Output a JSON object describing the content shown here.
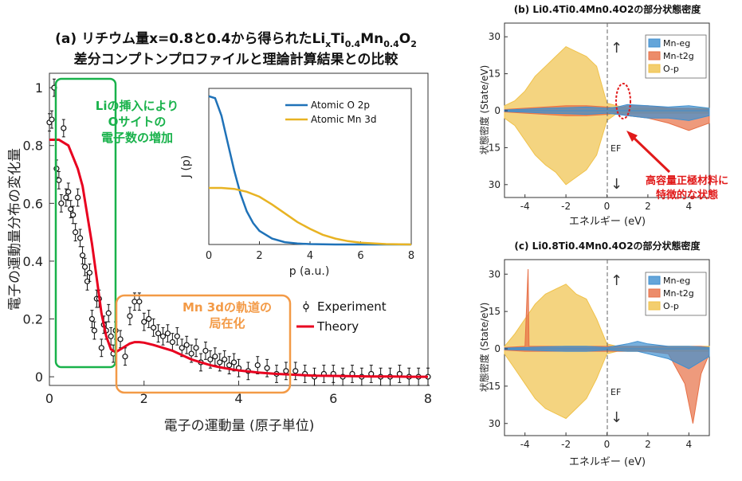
{
  "colors": {
    "experiment": "#111111",
    "theory": "#e8001f",
    "atomic_o": "#1f72b8",
    "atomic_mn": "#e8b323",
    "green_box": "#19b24b",
    "orange_box": "#f39a46",
    "dos_mn_eg": "#3f8fcf",
    "dos_mn_t2g": "#e76f45",
    "dos_o_p": "#f0c24a",
    "red_annotation": "#e11a1a"
  },
  "panel_a": {
    "title_line1": "(a) リチウム量x=0.8と0.4から得られたLi",
    "title_sub_x": "x",
    "title_mid1": "Ti",
    "title_sub_04a": "0.4",
    "title_mid2": "Mn",
    "title_sub_04b": "0.4",
    "title_mid3": "O",
    "title_sub_2": "2",
    "title_line2": "差分コンプトンプロファイルと理論計算結果との比較",
    "ylabel": "電子の運動量分布の変化量",
    "xlabel": "電子の運動量 (原子単位)",
    "annotation_green_1": "Liの挿入により",
    "annotation_green_2": "Oサイトの",
    "annotation_green_3": "電子数の増加",
    "annotation_orange_1": "Mn 3dの軌道の",
    "annotation_orange_2": "局在化",
    "legend_experiment": "Experiment",
    "legend_theory": "Theory",
    "inset_ylabel": "J (p)",
    "inset_xlabel": "p (a.u.)",
    "inset_legend_o": "Atomic O 2p",
    "inset_legend_mn": "Atomic Mn 3d"
  },
  "panel_b": {
    "title": "(b) Li0.4Ti0.4Mn0.4O2の部分状態密度",
    "ylabel": "状態密度 (State/eV)",
    "xlabel": "エネルギー (eV)",
    "ef_label": "EF",
    "legend": [
      "Mn-eg",
      "Mn-t2g",
      "O-p"
    ],
    "callout_1": "高容量正極材料に",
    "callout_2": "特徴的な状態"
  },
  "panel_c": {
    "title": "(c) Li0.8Ti0.4Mn0.4O2の部分状態密度",
    "ylabel": "状態密度 (State/eV)",
    "xlabel": "エネルギー (eV)",
    "ef_label": "EF",
    "legend": [
      "Mn-eg",
      "Mn-t2g",
      "O-p"
    ]
  },
  "chart_data": [
    {
      "type": "scatter",
      "xlabel": "電子の運動量 (原子単位)",
      "ylabel": "電子の運動量分布の変化量",
      "xlim": [
        0,
        8
      ],
      "ylim": [
        -0.03,
        1.05
      ],
      "xticks": [
        0,
        2,
        4,
        6,
        8
      ],
      "yticks": [
        0,
        0.2,
        0.4,
        0.6,
        0.8,
        1
      ],
      "series": [
        {
          "name": "Experiment",
          "x": [
            0.0,
            0.05,
            0.1,
            0.15,
            0.2,
            0.25,
            0.3,
            0.35,
            0.4,
            0.45,
            0.5,
            0.55,
            0.6,
            0.65,
            0.7,
            0.75,
            0.8,
            0.85,
            0.9,
            0.95,
            1.0,
            1.05,
            1.1,
            1.15,
            1.2,
            1.25,
            1.3,
            1.35,
            1.4,
            1.5,
            1.6,
            1.7,
            1.8,
            1.9,
            2.0,
            2.1,
            2.2,
            2.3,
            2.4,
            2.5,
            2.6,
            2.7,
            2.8,
            2.9,
            3.0,
            3.1,
            3.2,
            3.3,
            3.4,
            3.5,
            3.6,
            3.7,
            3.8,
            3.9,
            4.0,
            4.2,
            4.4,
            4.6,
            4.8,
            5.0,
            5.2,
            5.4,
            5.6,
            5.8,
            6.0,
            6.2,
            6.4,
            6.6,
            6.8,
            7.0,
            7.2,
            7.4,
            7.6,
            7.8,
            8.0
          ],
          "y": [
            0.88,
            0.89,
            1.0,
            0.72,
            0.68,
            0.6,
            0.86,
            0.62,
            0.64,
            0.58,
            0.56,
            0.5,
            0.62,
            0.48,
            0.42,
            0.38,
            0.33,
            0.36,
            0.2,
            0.16,
            0.27,
            0.27,
            0.1,
            0.18,
            0.16,
            0.22,
            0.14,
            0.08,
            0.16,
            0.13,
            0.07,
            0.21,
            0.26,
            0.26,
            0.19,
            0.2,
            0.17,
            0.15,
            0.14,
            0.15,
            0.12,
            0.14,
            0.1,
            0.11,
            0.08,
            0.1,
            0.05,
            0.09,
            0.06,
            0.07,
            0.05,
            0.06,
            0.04,
            0.05,
            0.03,
            0.02,
            0.04,
            0.03,
            0.01,
            0.02,
            0.02,
            0.01,
            0.0,
            0.01,
            0.01,
            0.0,
            0.01,
            0.0,
            0.01,
            0.0,
            0.0,
            0.01,
            0.0,
            0.0,
            0.0
          ],
          "err": 0.03
        },
        {
          "name": "Theory",
          "x": [
            0.0,
            0.2,
            0.4,
            0.6,
            0.7,
            0.8,
            0.9,
            1.0,
            1.1,
            1.2,
            1.3,
            1.4,
            1.5,
            1.6,
            1.7,
            1.8,
            1.9,
            2.0,
            2.2,
            2.4,
            2.6,
            2.8,
            3.0,
            3.2,
            3.4,
            3.6,
            3.8,
            4.0,
            4.4,
            4.8,
            5.2,
            5.6,
            6.0,
            6.4,
            6.8,
            7.2,
            7.6,
            8.0
          ],
          "y": [
            0.82,
            0.82,
            0.8,
            0.72,
            0.66,
            0.56,
            0.46,
            0.34,
            0.22,
            0.14,
            0.095,
            0.085,
            0.095,
            0.105,
            0.115,
            0.12,
            0.12,
            0.118,
            0.11,
            0.1,
            0.09,
            0.075,
            0.06,
            0.05,
            0.04,
            0.033,
            0.027,
            0.022,
            0.015,
            0.01,
            0.007,
            0.004,
            0.003,
            0.002,
            0.001,
            0.001,
            0.0,
            0.0
          ]
        }
      ]
    },
    {
      "type": "line",
      "title": "",
      "xlabel": "p (a.u.)",
      "ylabel": "J (p)",
      "xlim": [
        0,
        8
      ],
      "xticks": [
        0,
        2,
        4,
        6,
        8
      ],
      "series": [
        {
          "name": "Atomic O 2p",
          "x": [
            0,
            0.25,
            0.5,
            0.75,
            1.0,
            1.25,
            1.5,
            1.75,
            2.0,
            2.5,
            3.0,
            3.5,
            4.0,
            5.0,
            6.0,
            8.0
          ],
          "y": [
            0.76,
            0.75,
            0.66,
            0.52,
            0.38,
            0.26,
            0.17,
            0.11,
            0.07,
            0.03,
            0.012,
            0.005,
            0.002,
            0.0,
            0.0,
            0.0
          ]
        },
        {
          "name": "Atomic Mn 3d",
          "x": [
            0,
            0.5,
            1.0,
            1.5,
            2.0,
            2.5,
            3.0,
            3.5,
            4.0,
            4.5,
            5.0,
            5.5,
            6.0,
            7.0,
            8.0
          ],
          "y": [
            0.29,
            0.29,
            0.285,
            0.27,
            0.245,
            0.205,
            0.16,
            0.115,
            0.08,
            0.05,
            0.03,
            0.017,
            0.009,
            0.002,
            0.0
          ]
        }
      ]
    },
    {
      "type": "area",
      "title": "(b) Li0.4Ti0.4Mn0.4O2の部分状態密度",
      "xlabel": "エネルギー (eV)",
      "ylabel": "状態密度 (State/eV)",
      "xlim": [
        -5,
        5
      ],
      "ylim": [
        -32,
        32
      ],
      "xticks": [
        -4,
        -2,
        0,
        2,
        4
      ],
      "yticks_labels": [
        "30",
        "15",
        "0",
        "15",
        "30"
      ],
      "series": [
        {
          "name": "O-p",
          "x": [
            -5,
            -4.5,
            -4,
            -3.5,
            -3,
            -2.5,
            -2,
            -1.5,
            -1,
            -0.5,
            0,
            0.5,
            1,
            2,
            3,
            4,
            5
          ],
          "up": [
            2,
            4,
            8,
            14,
            18,
            22,
            26,
            24,
            22,
            18,
            3,
            2,
            1,
            1,
            1,
            1,
            1
          ],
          "down": [
            -3,
            -6,
            -12,
            -18,
            -22,
            -25,
            -30,
            -27,
            -24,
            -18,
            -4,
            -1,
            -1,
            -1,
            -1,
            -1,
            -1
          ]
        },
        {
          "name": "Mn-t2g",
          "x": [
            -5,
            -4,
            -3,
            -2,
            -1,
            0,
            0.5,
            1,
            2,
            3,
            4,
            5
          ],
          "up": [
            0.5,
            1,
            1.5,
            2,
            2,
            1.5,
            1,
            2,
            2,
            1,
            1,
            0.5
          ],
          "down": [
            -0.5,
            -1,
            -1.5,
            -2,
            -2,
            -1.5,
            -1,
            -2,
            -3,
            -5,
            -8,
            -5
          ]
        },
        {
          "name": "Mn-eg",
          "x": [
            -5,
            -4,
            -3,
            -2,
            -1,
            0,
            0.5,
            1,
            2,
            3,
            4,
            5
          ],
          "up": [
            0.3,
            0.6,
            1,
            1.2,
            1.5,
            1,
            1.5,
            2.5,
            2,
            1.5,
            2,
            1
          ],
          "down": [
            -0.3,
            -0.6,
            -1,
            -1.2,
            -1.5,
            -1,
            -1.5,
            -2,
            -3,
            -3,
            -4,
            -2
          ]
        }
      ]
    },
    {
      "type": "area",
      "title": "(c) Li0.8Ti0.4Mn0.4O2の部分状態密度",
      "xlabel": "エネルギー (eV)",
      "ylabel": "状態密度 (State/eV)",
      "xlim": [
        -5,
        5
      ],
      "ylim": [
        -32,
        32
      ],
      "xticks": [
        -4,
        -2,
        0,
        2,
        4
      ],
      "yticks_labels": [
        "30",
        "15",
        "0",
        "15",
        "30"
      ],
      "series": [
        {
          "name": "O-p",
          "x": [
            -5,
            -4.5,
            -4,
            -3.5,
            -3,
            -2.5,
            -2,
            -1.5,
            -1,
            -0.5,
            0,
            0.5,
            1,
            2,
            3,
            4,
            5
          ],
          "up": [
            1,
            6,
            12,
            18,
            22,
            24,
            26,
            22,
            20,
            12,
            2,
            1,
            1,
            1,
            1,
            1,
            1
          ],
          "down": [
            -2,
            -8,
            -14,
            -20,
            -24,
            -26,
            -28,
            -24,
            -20,
            -12,
            -2,
            -1,
            -1,
            -1,
            -1,
            -1,
            -1
          ]
        },
        {
          "name": "Mn-t2g",
          "x": [
            -5,
            -4,
            -3.85,
            -3.8,
            -3,
            -2,
            -1,
            0,
            1,
            2,
            3,
            3.8,
            4.2,
            4.6,
            5
          ],
          "up": [
            0.5,
            1,
            32,
            1,
            1,
            1,
            1,
            1,
            1,
            1,
            1,
            1,
            1,
            1,
            0.5
          ],
          "down": [
            -0.5,
            -1,
            -1,
            -1,
            -1,
            -1,
            -1,
            -1,
            -1,
            -1,
            -2,
            -14,
            -30,
            -10,
            -2
          ]
        },
        {
          "name": "Mn-eg",
          "x": [
            -5,
            -4,
            -3,
            -2,
            -1,
            0,
            1,
            1.5,
            2,
            3,
            4,
            5
          ],
          "up": [
            0.3,
            0.5,
            0.8,
            1,
            1,
            0.5,
            2,
            3,
            2,
            1,
            1,
            0.5
          ],
          "down": [
            -0.3,
            -0.5,
            -0.8,
            -1,
            -1,
            -0.5,
            -1,
            -1,
            -2,
            -4,
            -8,
            -3
          ]
        }
      ]
    }
  ]
}
